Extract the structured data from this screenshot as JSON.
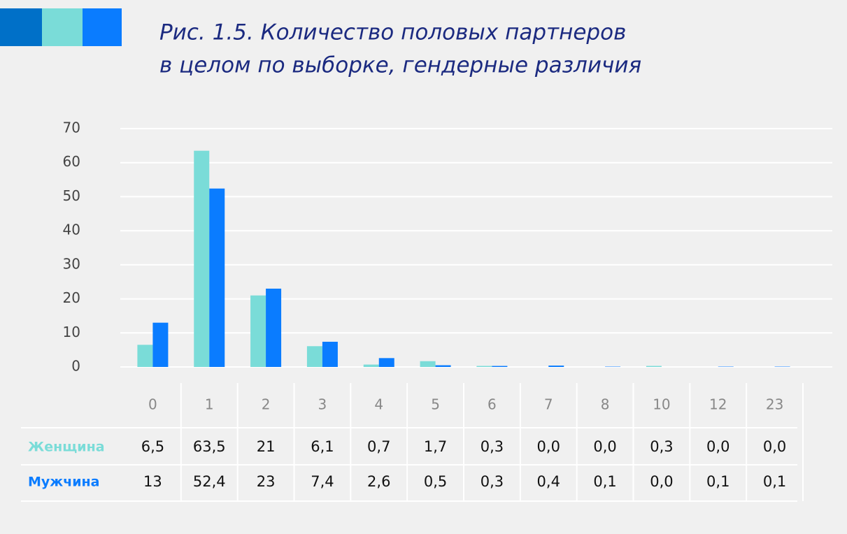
{
  "chart_data": {
    "type": "bar",
    "title": "Рис. 1.5. Количество половых партнеров",
    "subtitle": "в целом по выборке, гендерные различия",
    "categories": [
      "0",
      "1",
      "2",
      "3",
      "4",
      "5",
      "6",
      "7",
      "8",
      "10",
      "12",
      "23"
    ],
    "series": [
      {
        "name": "Женщина",
        "color": "#7adcd8",
        "values": [
          6.5,
          63.5,
          21,
          6.1,
          0.7,
          1.7,
          0.3,
          0.0,
          0.0,
          0.3,
          0.0,
          0.0
        ],
        "value_labels": [
          "6,5",
          "63,5",
          "21",
          "6,1",
          "0,7",
          "1,7",
          "0,3",
          "0,0",
          "0,0",
          "0,3",
          "0,0",
          "0,0"
        ]
      },
      {
        "name": "Мужчина",
        "color": "#0a7cff",
        "values": [
          13,
          52.4,
          23,
          7.4,
          2.6,
          0.5,
          0.3,
          0.4,
          0.1,
          0.0,
          0.1,
          0.1
        ],
        "value_labels": [
          "13",
          "52,4",
          "23",
          "7,4",
          "2,6",
          "0,5",
          "0,3",
          "0,4",
          "0,1",
          "0,0",
          "0,1",
          "0,1"
        ]
      }
    ],
    "ylim": [
      0,
      70
    ],
    "yticks": [
      0,
      10,
      20,
      30,
      40,
      50,
      60,
      70
    ],
    "grid": true
  }
}
